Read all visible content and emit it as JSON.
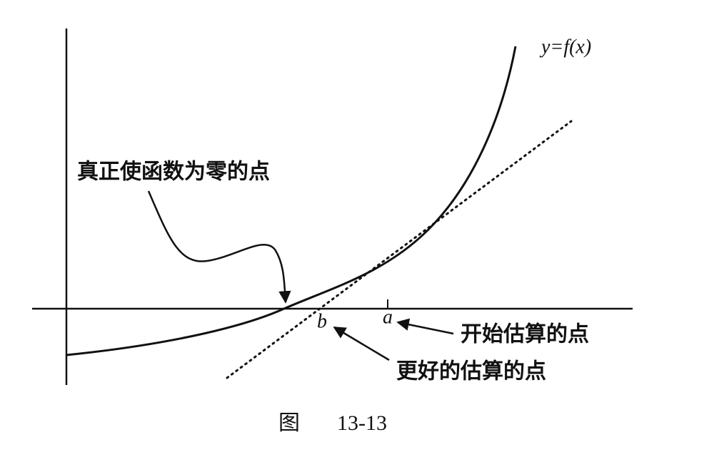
{
  "curve_label": "y=f(x)",
  "annotations": {
    "true_zero": "真正使函数为零的点",
    "start_estimate": "开始估算的点",
    "better_estimate": "更好的估算的点"
  },
  "points": {
    "a": "a",
    "b": "b"
  },
  "caption": {
    "label": "图",
    "number": "13-13"
  }
}
